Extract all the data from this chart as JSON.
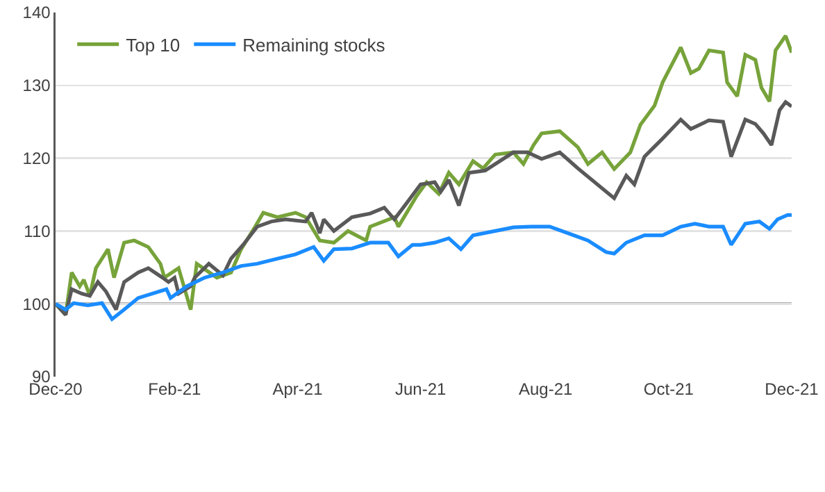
{
  "chart_data": {
    "type": "line",
    "x": [
      "2020-12-31",
      "2021-01-05",
      "2021-01-08",
      "2021-01-12",
      "2021-01-14",
      "2021-01-17",
      "2021-01-20",
      "2021-01-26",
      "2021-01-29",
      "2021-02-03",
      "2021-02-08",
      "2021-02-15",
      "2021-02-21",
      "2021-02-23",
      "2021-03-02",
      "2021-03-08",
      "2021-03-11",
      "2021-03-21",
      "2021-03-28",
      "2021-04-02",
      "2021-04-09",
      "2021-04-13",
      "2021-04-20",
      "2021-04-29",
      "2021-05-04",
      "2021-05-11",
      "2021-05-18",
      "2021-05-25",
      "2021-06-03",
      "2021-06-05",
      "2021-06-17",
      "2021-06-19",
      "2021-06-28",
      "2021-07-03",
      "2021-07-09",
      "2021-07-14",
      "2021-07-19",
      "2021-07-26",
      "2021-07-31",
      "2021-08-06",
      "2021-08-15",
      "2021-08-20",
      "2021-08-25",
      "2021-08-29",
      "2021-09-07",
      "2021-09-16",
      "2021-09-21",
      "2021-09-28",
      "2021-10-04",
      "2021-10-12",
      "2021-10-17",
      "2021-10-24",
      "2021-10-28",
      "2021-11-06",
      "2021-11-11",
      "2021-11-15",
      "2021-11-20",
      "2021-11-27",
      "2021-11-29",
      "2021-12-04",
      "2021-12-08",
      "2021-12-13",
      "2021-12-16",
      "2021-12-20",
      "2021-12-23",
      "2021-12-28",
      "2021-12-31"
    ],
    "series": [
      {
        "name": "Top 10",
        "color": "#77a33a",
        "values": [
          100,
          98.5,
          104.3,
          102.4,
          103.3,
          101.1,
          104.9,
          107.5,
          103.6,
          108.4,
          108.7,
          107.8,
          105.5,
          103.6,
          104.9,
          99.2,
          105.5,
          103.6,
          104.3,
          107.5,
          110.6,
          112.5,
          111.9,
          112.5,
          111.9,
          108.7,
          108.4,
          110,
          108.7,
          110.6,
          111.9,
          110.6,
          114.8,
          116.7,
          115.1,
          118,
          116.4,
          119.6,
          118.6,
          120.5,
          120.8,
          119.2,
          121.8,
          123.4,
          123.7,
          121.5,
          119.2,
          120.8,
          118.5,
          120.8,
          124.6,
          127.2,
          130.4,
          135.2,
          131.7,
          132.3,
          134.8,
          134.5,
          130.4,
          128.5,
          134.2,
          133.5,
          129.7,
          127.8,
          134.8,
          136.8,
          134.5
        ]
      },
      {
        "color": "#595959",
        "x": [
          "2020-12-31",
          "2021-01-05",
          "2021-01-08",
          "2021-01-13",
          "2021-01-17",
          "2021-01-21",
          "2021-01-25",
          "2021-01-30",
          "2021-02-03",
          "2021-02-10",
          "2021-02-15",
          "2021-02-22",
          "2021-02-25",
          "2021-02-28",
          "2021-03-02",
          "2021-03-08",
          "2021-03-10",
          "2021-03-17",
          "2021-03-24",
          "2021-03-28",
          "2021-04-03",
          "2021-04-10",
          "2021-04-17",
          "2021-04-24",
          "2021-05-04",
          "2021-05-07",
          "2021-05-11",
          "2021-05-13",
          "2021-05-18",
          "2021-05-27",
          "2021-06-05",
          "2021-06-12",
          "2021-06-17",
          "2021-06-23",
          "2021-06-30",
          "2021-07-07",
          "2021-07-10",
          "2021-07-14",
          "2021-07-19",
          "2021-07-24",
          "2021-08-01",
          "2021-08-15",
          "2021-08-22",
          "2021-08-29",
          "2021-09-07",
          "2021-09-16",
          "2021-09-23",
          "2021-09-30",
          "2021-10-04",
          "2021-10-10",
          "2021-10-14",
          "2021-10-19",
          "2021-10-28",
          "2021-11-06",
          "2021-11-11",
          "2021-11-20",
          "2021-11-27",
          "2021-12-01",
          "2021-12-08",
          "2021-12-13",
          "2021-12-17",
          "2021-12-21",
          "2021-12-25",
          "2021-12-28",
          "2021-12-31"
        ],
        "values": [
          100,
          98.5,
          102,
          101.4,
          101.1,
          103,
          101.7,
          99.2,
          103,
          104.3,
          104.9,
          103.6,
          103,
          103.6,
          101.4,
          102.4,
          103.6,
          105.5,
          103.9,
          106.2,
          108.1,
          110.6,
          111.3,
          111.6,
          111.3,
          112.5,
          109.7,
          111.6,
          110,
          111.9,
          112.4,
          113.2,
          111.6,
          113.8,
          116.4,
          116.7,
          115.4,
          117,
          113.5,
          118,
          118.3,
          120.8,
          120.8,
          119.9,
          120.8,
          118.6,
          117,
          115.4,
          114.5,
          117.6,
          116.4,
          120.2,
          122.7,
          125.3,
          124,
          125.2,
          125,
          120.2,
          125.3,
          124.7,
          123.4,
          121.8,
          126.6,
          127.7,
          127.1
        ]
      },
      {
        "name": "Remaining stocks",
        "color": "#1a8cff",
        "x": [
          "2020-12-31",
          "2021-01-05",
          "2021-01-09",
          "2021-01-16",
          "2021-01-23",
          "2021-01-28",
          "2021-02-03",
          "2021-02-10",
          "2021-02-17",
          "2021-02-24",
          "2021-02-26",
          "2021-03-06",
          "2021-03-15",
          "2021-03-24",
          "2021-04-02",
          "2021-04-10",
          "2021-04-20",
          "2021-04-29",
          "2021-05-08",
          "2021-05-13",
          "2021-05-18",
          "2021-05-27",
          "2021-06-05",
          "2021-06-14",
          "2021-06-19",
          "2021-06-26",
          "2021-06-30",
          "2021-07-07",
          "2021-07-14",
          "2021-07-20",
          "2021-07-26",
          "2021-08-06",
          "2021-08-15",
          "2021-08-24",
          "2021-09-02",
          "2021-09-11",
          "2021-09-21",
          "2021-09-30",
          "2021-10-04",
          "2021-10-10",
          "2021-10-19",
          "2021-10-28",
          "2021-11-06",
          "2021-11-13",
          "2021-11-20",
          "2021-11-27",
          "2021-12-01",
          "2021-12-08",
          "2021-12-15",
          "2021-12-20",
          "2021-12-24",
          "2021-12-29",
          "2021-12-31"
        ],
        "values": [
          100,
          99.2,
          100.1,
          99.8,
          100.1,
          97.9,
          99.2,
          100.8,
          101.4,
          102,
          100.8,
          102.4,
          103.6,
          104.3,
          105.2,
          105.5,
          106.2,
          106.8,
          107.8,
          105.9,
          107.5,
          107.6,
          108.4,
          108.4,
          106.5,
          108.1,
          108.1,
          108.4,
          109,
          107.5,
          109.4,
          110,
          110.5,
          110.6,
          110.6,
          109.7,
          108.7,
          107.1,
          106.9,
          108.4,
          109.4,
          109.4,
          110.6,
          111,
          110.6,
          110.6,
          108.1,
          111,
          111.3,
          110.3,
          111.6,
          112.2,
          112.2
        ]
      }
    ],
    "xlim": [
      "2020-12-31",
      "2021-12-31"
    ],
    "xticks": [
      {
        "value": "2020-12-31",
        "label": "Dec-20"
      },
      {
        "value": "2021-02-28",
        "label": "Feb-21"
      },
      {
        "value": "2021-04-30",
        "label": "Apr-21"
      },
      {
        "value": "2021-06-30",
        "label": "Jun-21"
      },
      {
        "value": "2021-08-31",
        "label": "Aug-21"
      },
      {
        "value": "2021-10-31",
        "label": "Oct-21"
      },
      {
        "value": "2021-12-31",
        "label": "Dec-21"
      }
    ],
    "ylim": [
      90,
      140
    ],
    "yticks": [
      90,
      100,
      110,
      120,
      130,
      140
    ],
    "ref_lines": [
      {
        "axis": "y",
        "value": 100,
        "color": "#595959"
      }
    ],
    "grid": "y",
    "legend": "top left",
    "marker": "none",
    "line_style": "solid"
  }
}
